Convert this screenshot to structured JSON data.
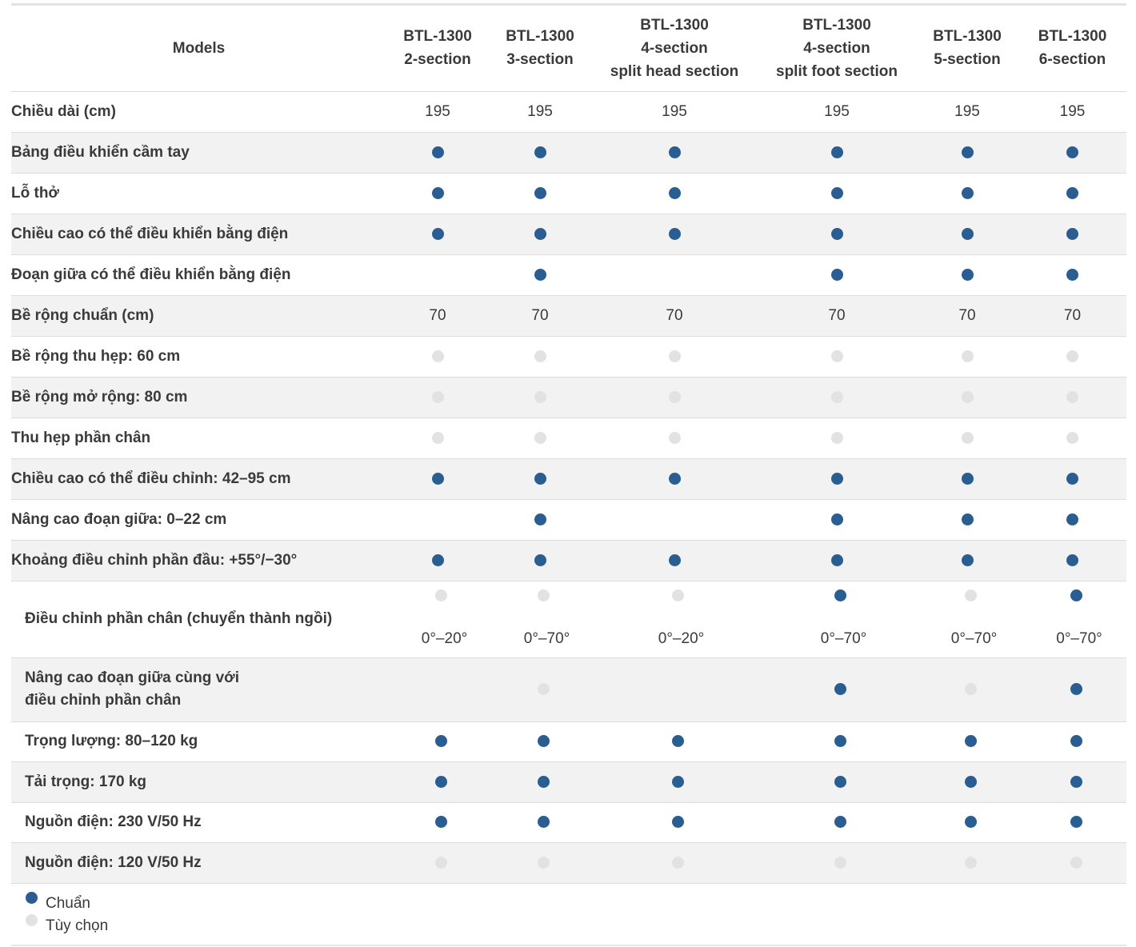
{
  "table": {
    "header_label": "Models",
    "columns": [
      [
        "BTL-1300",
        "2-section"
      ],
      [
        "BTL-1300",
        "3-section"
      ],
      [
        "BTL-1300",
        "4-section",
        "split head section"
      ],
      [
        "BTL-1300",
        "4-section",
        "split foot section"
      ],
      [
        "BTL-1300",
        "5-section"
      ],
      [
        "BTL-1300",
        "6-section"
      ]
    ],
    "rows": [
      {
        "label": "Chiều dài (cm)",
        "cells": [
          "195",
          "195",
          "195",
          "195",
          "195",
          "195"
        ]
      },
      {
        "label": "Bảng điều khiển cầm tay",
        "cells": [
          "std",
          "std",
          "std",
          "std",
          "std",
          "std"
        ]
      },
      {
        "label": "Lỗ thở",
        "cells": [
          "std",
          "std",
          "std",
          "std",
          "std",
          "std"
        ]
      },
      {
        "label": "Chiều cao có thể điều khiển bằng điện",
        "cells": [
          "std",
          "std",
          "std",
          "std",
          "std",
          "std"
        ]
      },
      {
        "label": "Đoạn giữa có thể điều khiển bằng điện",
        "cells": [
          "",
          "std",
          "",
          "std",
          "std",
          "std"
        ]
      },
      {
        "label": "Bề rộng chuẩn (cm)",
        "cells": [
          "70",
          "70",
          "70",
          "70",
          "70",
          "70"
        ]
      },
      {
        "label": "Bề rộng thu hẹp: 60 cm",
        "cells": [
          "opt",
          "opt",
          "opt",
          "opt",
          "opt",
          "opt"
        ]
      },
      {
        "label": "Bề rộng mở rộng: 80 cm",
        "cells": [
          "opt",
          "opt",
          "opt",
          "opt",
          "opt",
          "opt"
        ]
      },
      {
        "label": "Thu hẹp phần chân",
        "cells": [
          "opt",
          "opt",
          "opt",
          "opt",
          "opt",
          "opt"
        ]
      },
      {
        "label": "Chiều cao có thể điều chỉnh: 42–95 cm",
        "cells": [
          "std",
          "std",
          "std",
          "std",
          "std",
          "std"
        ]
      },
      {
        "label": "Nâng cao đoạn giữa: 0–22 cm",
        "cells": [
          "",
          "std",
          "",
          "std",
          "std",
          "std"
        ]
      },
      {
        "label": "Khoảng điều chỉnh phần đầu: +55°/−30°",
        "cells": [
          "std",
          "std",
          "std",
          "std",
          "std",
          "std"
        ]
      },
      {
        "label": "Điều chỉnh phần chân (chuyển thành ngồi)",
        "cells": [
          "opt",
          "opt",
          "opt",
          "std",
          "opt",
          "std"
        ],
        "sub": [
          "0°–20°",
          "0°–70°",
          "0°–20°",
          "0°–70°",
          "0°–70°",
          "0°–70°"
        ]
      },
      {
        "label": "Nâng cao đoạn giữa cùng với\nđiều chỉnh phần chân",
        "cells": [
          "",
          "opt",
          "",
          "std",
          "opt",
          "std"
        ]
      },
      {
        "label": "Trọng lượng: 80–120 kg",
        "cells": [
          "std",
          "std",
          "std",
          "std",
          "std",
          "std"
        ]
      },
      {
        "label": "Tải trọng: 170 kg",
        "cells": [
          "std",
          "std",
          "std",
          "std",
          "std",
          "std"
        ]
      },
      {
        "label": "Nguồn điện: 230 V/50 Hz",
        "cells": [
          "std",
          "std",
          "std",
          "std",
          "std",
          "std"
        ]
      },
      {
        "label": "Nguồn điện: 120 V/50 Hz",
        "cells": [
          "opt",
          "opt",
          "opt",
          "opt",
          "opt",
          "opt"
        ]
      }
    ]
  },
  "legend": {
    "standard": "Chuẩn",
    "optional": "Tùy chọn"
  },
  "colors": {
    "standard_dot": "#2a5d91",
    "optional_dot": "#e2e2e2"
  }
}
